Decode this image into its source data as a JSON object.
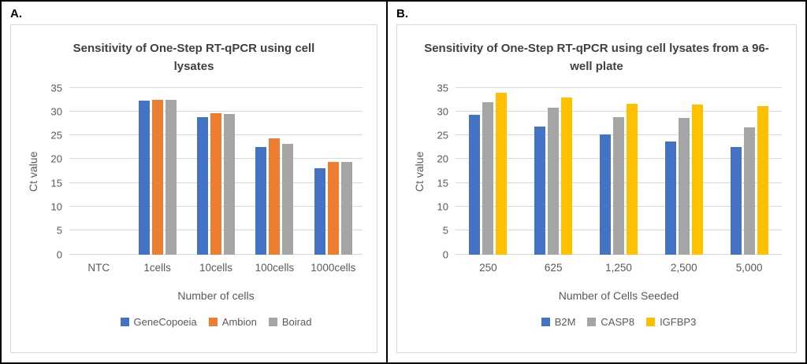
{
  "panels": [
    {
      "label": "A.",
      "chart_data": {
        "type": "bar",
        "title": "Sensitivity of One-Step RT-qPCR using cell lysates",
        "xlabel": "Number of cells",
        "ylabel": "Ct value",
        "ylim": [
          0,
          35
        ],
        "ytick_step": 5,
        "grid": true,
        "legend_position": "bottom",
        "gridline_color": "#D9D9D9",
        "axis_text_color": "#595959",
        "categories": [
          "NTC",
          "1cells",
          "10cells",
          "100cells",
          "1000cells"
        ],
        "series": [
          {
            "name": "GeneCopoeia",
            "color": "#4472C4",
            "values": [
              0,
              32.2,
              28.8,
              22.6,
              18.1
            ]
          },
          {
            "name": "Ambion",
            "color": "#ED7D31",
            "values": [
              0,
              32.5,
              29.6,
              24.4,
              19.4
            ]
          },
          {
            "name": "Boirad",
            "color": "#A5A5A5",
            "values": [
              0,
              32.5,
              29.4,
              23.2,
              19.4
            ]
          }
        ]
      }
    },
    {
      "label": "B.",
      "chart_data": {
        "type": "bar",
        "title": "Sensitivity of One-Step RT-qPCR using cell lysates from a 96-well plate",
        "xlabel": "Number of Cells Seeded",
        "ylabel": "Ct value",
        "ylim": [
          0,
          35
        ],
        "ytick_step": 5,
        "grid": true,
        "legend_position": "bottom",
        "gridline_color": "#D9D9D9",
        "axis_text_color": "#595959",
        "categories": [
          "250",
          "625",
          "1,250",
          "2,500",
          "5,000"
        ],
        "series": [
          {
            "name": "B2M",
            "color": "#4472C4",
            "values": [
              29.3,
              26.9,
              25.1,
              23.7,
              22.6
            ]
          },
          {
            "name": "CASP8",
            "color": "#A5A5A5",
            "values": [
              32.0,
              30.8,
              28.8,
              28.6,
              26.7
            ]
          },
          {
            "name": "IGFBP3",
            "color": "#FFC000",
            "values": [
              34.0,
              33.0,
              31.7,
              31.5,
              31.2
            ]
          }
        ]
      }
    }
  ]
}
